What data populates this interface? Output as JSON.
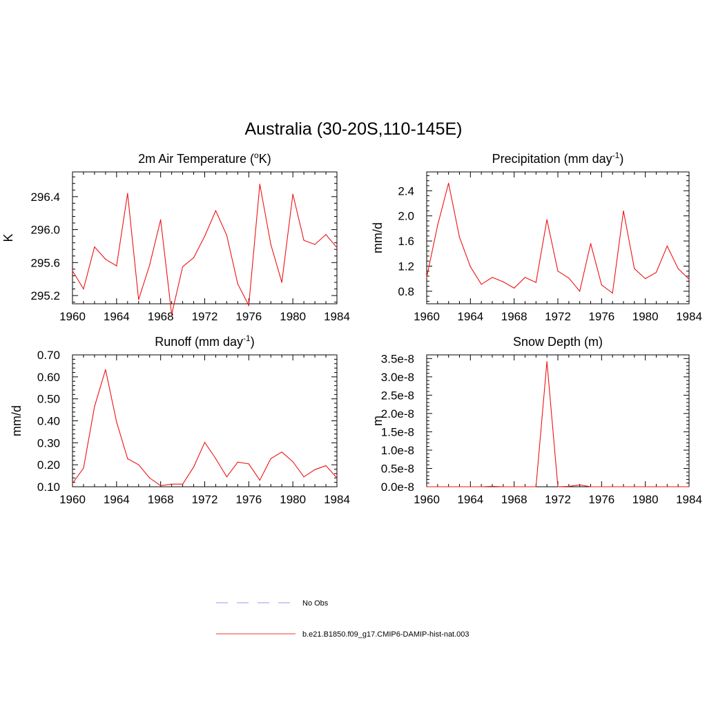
{
  "figure": {
    "title": "Australia (30-20S,110-145E)"
  },
  "legend": {
    "placement": "bottom-center",
    "items": [
      {
        "label": "No Obs",
        "color": "#9999ee",
        "style": "dashed"
      },
      {
        "label": "b.e21.B1850.f09_g17.CMIP6-DAMIP-hist-nat.003",
        "color": "#ee3333",
        "style": "solid"
      }
    ]
  },
  "chart_data": [
    {
      "type": "line",
      "title": "2m Air Temperature (°K)",
      "title_parts": {
        "pre": "2m Air Temperature (",
        "sup": "o",
        "post": "K)"
      },
      "xlabel": "",
      "ylabel": "K",
      "xlim": [
        1960,
        1984
      ],
      "ylim": [
        295.1,
        296.7
      ],
      "xticks": [
        1960,
        1964,
        1968,
        1972,
        1976,
        1980,
        1984
      ],
      "xtick_labels": [
        "1960",
        "1964",
        "1968",
        "1972",
        "1976",
        "1980",
        "1984"
      ],
      "yticks": [
        295.2,
        295.6,
        296.0,
        296.4
      ],
      "ytick_labels": [
        "295.2",
        "295.6",
        "296.0",
        "296.4"
      ],
      "grid": false,
      "x": [
        1960,
        1961,
        1962,
        1963,
        1964,
        1965,
        1966,
        1967,
        1968,
        1969,
        1970,
        1971,
        1972,
        1973,
        1974,
        1975,
        1976,
        1977,
        1978,
        1979,
        1980,
        1981,
        1982,
        1983,
        1984
      ],
      "series": [
        {
          "color": "#ee1111",
          "values": [
            295.5,
            295.28,
            295.79,
            295.64,
            295.56,
            296.44,
            295.15,
            295.57,
            296.12,
            294.97,
            295.55,
            295.66,
            295.92,
            296.23,
            295.93,
            295.34,
            295.08,
            296.55,
            295.82,
            295.36,
            296.43,
            295.87,
            295.82,
            295.94,
            295.78
          ]
        }
      ]
    },
    {
      "type": "line",
      "title": "Precipitation (mm day-1)",
      "title_parts": {
        "pre": "Precipitation (mm day",
        "sup": "-1",
        "post": ")"
      },
      "xlabel": "",
      "ylabel": "mm/d",
      "xlim": [
        1960,
        1984
      ],
      "ylim": [
        0.6,
        2.7
      ],
      "xticks": [
        1960,
        1964,
        1968,
        1972,
        1976,
        1980,
        1984
      ],
      "xtick_labels": [
        "1960",
        "1964",
        "1968",
        "1972",
        "1976",
        "1980",
        "1984"
      ],
      "yticks": [
        0.8,
        1.2,
        1.6,
        2.0,
        2.4
      ],
      "ytick_labels": [
        "0.8",
        "1.2",
        "1.6",
        "2.0",
        "2.4"
      ],
      "grid": false,
      "x": [
        1960,
        1961,
        1962,
        1963,
        1964,
        1965,
        1966,
        1967,
        1968,
        1969,
        1970,
        1971,
        1972,
        1973,
        1974,
        1975,
        1976,
        1977,
        1978,
        1979,
        1980,
        1981,
        1982,
        1983,
        1984
      ],
      "series": [
        {
          "color": "#ee1111",
          "values": [
            1.02,
            1.85,
            2.52,
            1.66,
            1.19,
            0.91,
            1.02,
            0.95,
            0.85,
            1.02,
            0.94,
            1.94,
            1.12,
            1.01,
            0.8,
            1.56,
            0.9,
            0.77,
            2.08,
            1.16,
            1.0,
            1.1,
            1.52,
            1.16,
            0.99
          ]
        }
      ]
    },
    {
      "type": "line",
      "title": "Runoff (mm day-1)",
      "title_parts": {
        "pre": "Runoff (mm day",
        "sup": "-1",
        "post": ")"
      },
      "xlabel": "",
      "ylabel": "mm/d",
      "xlim": [
        1960,
        1984
      ],
      "ylim": [
        0.1,
        0.7
      ],
      "xticks": [
        1960,
        1964,
        1968,
        1972,
        1976,
        1980,
        1984
      ],
      "xtick_labels": [
        "1960",
        "1964",
        "1968",
        "1972",
        "1976",
        "1980",
        "1984"
      ],
      "yticks": [
        0.1,
        0.2,
        0.3,
        0.4,
        0.5,
        0.6,
        0.7
      ],
      "ytick_labels": [
        "0.10",
        "0.20",
        "0.30",
        "0.40",
        "0.50",
        "0.60",
        "0.70"
      ],
      "grid": false,
      "x": [
        1960,
        1961,
        1962,
        1963,
        1964,
        1965,
        1966,
        1967,
        1968,
        1969,
        1970,
        1971,
        1972,
        1973,
        1974,
        1975,
        1976,
        1977,
        1978,
        1979,
        1980,
        1981,
        1982,
        1983,
        1984
      ],
      "series": [
        {
          "color": "#ee1111",
          "values": [
            0.115,
            0.185,
            0.465,
            0.633,
            0.395,
            0.228,
            0.2,
            0.14,
            0.105,
            0.112,
            0.112,
            0.19,
            0.302,
            0.228,
            0.145,
            0.212,
            0.204,
            0.13,
            0.228,
            0.258,
            0.214,
            0.145,
            0.178,
            0.196,
            0.14
          ]
        }
      ]
    },
    {
      "type": "line",
      "title": "Snow Depth (m)",
      "title_parts": {
        "pre": "Snow Depth (m)",
        "sup": "",
        "post": ""
      },
      "xlabel": "",
      "ylabel": "m",
      "xlim": [
        1960,
        1984
      ],
      "ylim": [
        0,
        3.6e-08
      ],
      "xticks": [
        1960,
        1964,
        1968,
        1972,
        1976,
        1980,
        1984
      ],
      "xtick_labels": [
        "1960",
        "1964",
        "1968",
        "1972",
        "1976",
        "1980",
        "1984"
      ],
      "yticks": [
        0,
        5e-09,
        1e-08,
        1.5e-08,
        2e-08,
        2.5e-08,
        3e-08,
        3.5e-08
      ],
      "ytick_labels": [
        "0.0e-8",
        "0.5e-8",
        "1.0e-8",
        "1.5e-8",
        "2.0e-8",
        "2.5e-8",
        "3.0e-8",
        "3.5e-8"
      ],
      "grid": false,
      "x": [
        1960,
        1961,
        1962,
        1963,
        1964,
        1965,
        1966,
        1967,
        1968,
        1969,
        1970,
        1971,
        1972,
        1973,
        1974,
        1975,
        1976,
        1977,
        1978,
        1979,
        1980,
        1981,
        1982,
        1983,
        1984
      ],
      "series": [
        {
          "color": "#ee1111",
          "values": [
            0,
            0,
            0,
            0,
            0,
            0,
            1e-10,
            0,
            0,
            0,
            0,
            3.42e-08,
            0,
            1e-10,
            5e-10,
            0,
            0,
            0,
            0,
            0,
            0,
            0,
            0,
            0,
            0
          ]
        }
      ]
    }
  ]
}
